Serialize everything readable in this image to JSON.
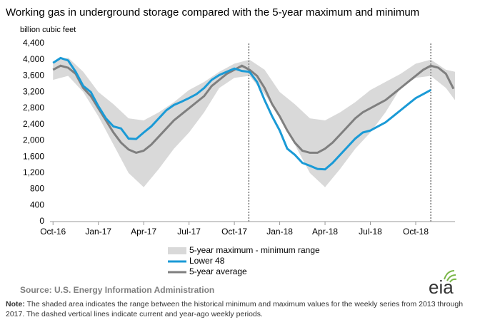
{
  "chart_data": {
    "type": "line",
    "title": "Working gas in underground  storage compared with the 5-year maximum and minimum",
    "y_axis_label": "billion cubic feet",
    "xlim": [
      -0.2,
      26.6
    ],
    "xticks": [
      {
        "value": 0,
        "label": "Oct-16"
      },
      {
        "value": 3,
        "label": "Jan-17"
      },
      {
        "value": 6,
        "label": "Apr-17"
      },
      {
        "value": 9,
        "label": "Jul-17"
      },
      {
        "value": 12,
        "label": "Oct-17"
      },
      {
        "value": 15,
        "label": "Jan-18"
      },
      {
        "value": 18,
        "label": "Apr-18"
      },
      {
        "value": 21,
        "label": "Jul-18"
      },
      {
        "value": 24,
        "label": "Oct-18"
      }
    ],
    "ylim": [
      0,
      4400
    ],
    "yticks": [
      0,
      400,
      800,
      {
        "value": 1200,
        "label": "1,200"
      },
      {
        "value": 1600,
        "label": "1,600"
      },
      {
        "value": 2000,
        "label": "2,000"
      },
      {
        "value": 2400,
        "label": "2,400"
      },
      {
        "value": 2800,
        "label": "2,800"
      },
      {
        "value": 3200,
        "label": "3,200"
      },
      {
        "value": 3600,
        "label": "3,600"
      },
      {
        "value": 4000,
        "label": "4,000"
      },
      {
        "value": 4400,
        "label": "4,400"
      }
    ],
    "grid": false,
    "vlines": [
      12.95,
      25.0
    ],
    "range": {
      "name": "5-year maximum - minimum range",
      "color": "#d9d9d9",
      "x": [
        0,
        1,
        2,
        3,
        4,
        5,
        6,
        7,
        8,
        9,
        10,
        11,
        12,
        13,
        14,
        15,
        16,
        17,
        18,
        19,
        20,
        21,
        22,
        23,
        24,
        25,
        26,
        26.6
      ],
      "high": [
        3950,
        4050,
        3700,
        3200,
        2900,
        2550,
        2500,
        2700,
        2950,
        3250,
        3450,
        3700,
        3900,
        4000,
        3750,
        3200,
        2900,
        2550,
        2500,
        2700,
        2950,
        3250,
        3450,
        3650,
        3900,
        4000,
        3750,
        3700
      ],
      "low": [
        3500,
        3600,
        3200,
        2600,
        1900,
        1200,
        850,
        1300,
        1800,
        2200,
        2700,
        3300,
        3550,
        3600,
        3150,
        2600,
        1900,
        1200,
        850,
        1300,
        1800,
        2200,
        2700,
        3300,
        3550,
        3600,
        3300,
        3000
      ]
    },
    "series": [
      {
        "name": "Lower 48",
        "color": "#1a9ad6",
        "x": [
          0,
          0.5,
          1,
          1.5,
          2,
          2.5,
          3,
          3.5,
          4,
          4.5,
          5,
          5.5,
          6,
          6.5,
          7,
          7.5,
          8,
          8.5,
          9,
          9.5,
          10,
          10.5,
          11,
          11.5,
          12,
          12.5,
          13,
          13.5,
          14,
          14.5,
          15,
          15.5,
          16,
          16.5,
          17,
          17.5,
          18,
          18.5,
          19,
          19.5,
          20,
          20.5,
          21,
          21.5,
          22,
          22.5,
          23,
          23.5,
          24,
          24.5,
          25
        ],
        "values": [
          3920,
          4040,
          3980,
          3700,
          3350,
          3200,
          2850,
          2550,
          2350,
          2300,
          2050,
          2040,
          2200,
          2350,
          2550,
          2750,
          2880,
          2960,
          3050,
          3150,
          3300,
          3500,
          3620,
          3700,
          3780,
          3720,
          3700,
          3450,
          3000,
          2600,
          2250,
          1800,
          1650,
          1450,
          1380,
          1300,
          1290,
          1450,
          1650,
          1850,
          2050,
          2200,
          2250,
          2350,
          2450,
          2600,
          2750,
          2900,
          3050,
          3150,
          3250
        ]
      },
      {
        "name": "5-year average",
        "color": "#7f7f7f",
        "x": [
          0,
          0.5,
          1,
          1.5,
          2,
          2.5,
          3,
          3.5,
          4,
          4.5,
          5,
          5.5,
          6,
          6.5,
          7,
          7.5,
          8,
          8.5,
          9,
          9.5,
          10,
          10.5,
          11,
          11.5,
          12,
          12.5,
          13,
          13.5,
          14,
          14.5,
          15,
          15.5,
          16,
          16.5,
          17,
          17.5,
          18,
          18.5,
          19,
          19.5,
          20,
          20.5,
          21,
          21.5,
          22,
          22.5,
          23,
          23.5,
          24,
          24.5,
          25,
          25.5,
          26,
          26.5
        ],
        "values": [
          3750,
          3850,
          3800,
          3650,
          3300,
          3100,
          2800,
          2500,
          2200,
          1950,
          1780,
          1700,
          1750,
          1900,
          2100,
          2300,
          2500,
          2650,
          2800,
          2950,
          3100,
          3350,
          3500,
          3650,
          3750,
          3850,
          3750,
          3600,
          3300,
          2900,
          2600,
          2250,
          1950,
          1750,
          1700,
          1700,
          1800,
          1950,
          2150,
          2350,
          2550,
          2700,
          2800,
          2900,
          3000,
          3150,
          3300,
          3450,
          3600,
          3750,
          3850,
          3800,
          3650,
          3280
        ]
      }
    ],
    "source": "Source:  U.S. Energy Information Administration",
    "logo": "eia",
    "note_label": "Note:",
    "note": "The shaded area indicates the range between the historical minimum and maximum values for the weekly series from 2013 through 2017. The dashed vertical lines indicate current and year-ago weekly periods."
  }
}
